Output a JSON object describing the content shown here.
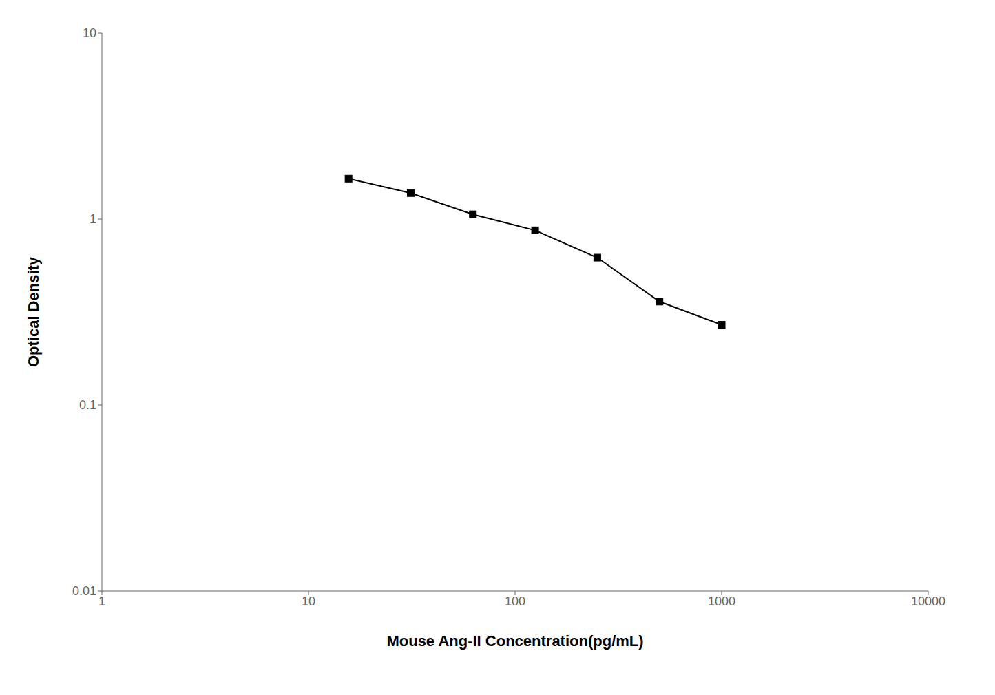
{
  "chart_data": {
    "type": "line",
    "x": [
      15.625,
      31.25,
      62.5,
      125,
      250,
      500,
      1000
    ],
    "values": [
      1.65,
      1.38,
      1.06,
      0.87,
      0.62,
      0.36,
      0.27
    ],
    "xlabel": "Mouse Ang-II Concentration(pg/mL)",
    "ylabel": "Optical Density",
    "xlim": [
      1,
      10000
    ],
    "ylim": [
      0.01,
      10
    ],
    "xticks": [
      1,
      10,
      100,
      1000,
      10000
    ],
    "yticks": [
      0.01,
      0.1,
      1,
      10
    ],
    "log": true,
    "color": "#000000",
    "marker": "square",
    "grid": false
  }
}
